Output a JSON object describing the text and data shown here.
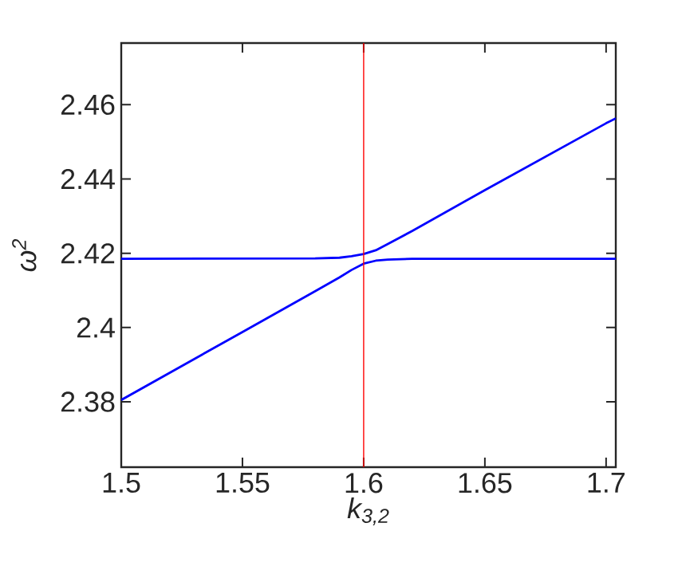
{
  "chart_data": {
    "type": "line",
    "xlabel": "k$_{3,2}$",
    "ylabel": "ω$^{2}$",
    "xlim": [
      1.5,
      1.704
    ],
    "ylim": [
      2.3624,
      2.4766
    ],
    "xticks": [
      1.5,
      1.55,
      1.6,
      1.65,
      1.7
    ],
    "yticks": [
      2.38,
      2.4,
      2.42,
      2.44,
      2.46
    ],
    "grid": false,
    "series": [
      {
        "color": "#0000ff",
        "x": [
          1.5,
          1.58,
          1.59,
          1.595,
          1.6,
          1.605,
          1.61,
          1.62,
          1.65,
          1.7,
          1.704
        ],
        "values": [
          2.4185,
          2.4186,
          2.4188,
          2.4192,
          2.4198,
          2.4208,
          2.4225,
          2.426,
          2.437,
          2.455,
          2.4563
        ]
      },
      {
        "color": "#0000ff",
        "x": [
          1.5,
          1.55,
          1.58,
          1.59,
          1.595,
          1.6,
          1.605,
          1.61,
          1.62,
          1.704
        ],
        "values": [
          2.3805,
          2.3988,
          2.4098,
          2.4135,
          2.4155,
          2.4172,
          2.418,
          2.4183,
          2.4185,
          2.4185
        ]
      }
    ],
    "ref_lines": [
      {
        "axis": "x",
        "value": 1.6,
        "color": "#ff0000"
      }
    ]
  }
}
